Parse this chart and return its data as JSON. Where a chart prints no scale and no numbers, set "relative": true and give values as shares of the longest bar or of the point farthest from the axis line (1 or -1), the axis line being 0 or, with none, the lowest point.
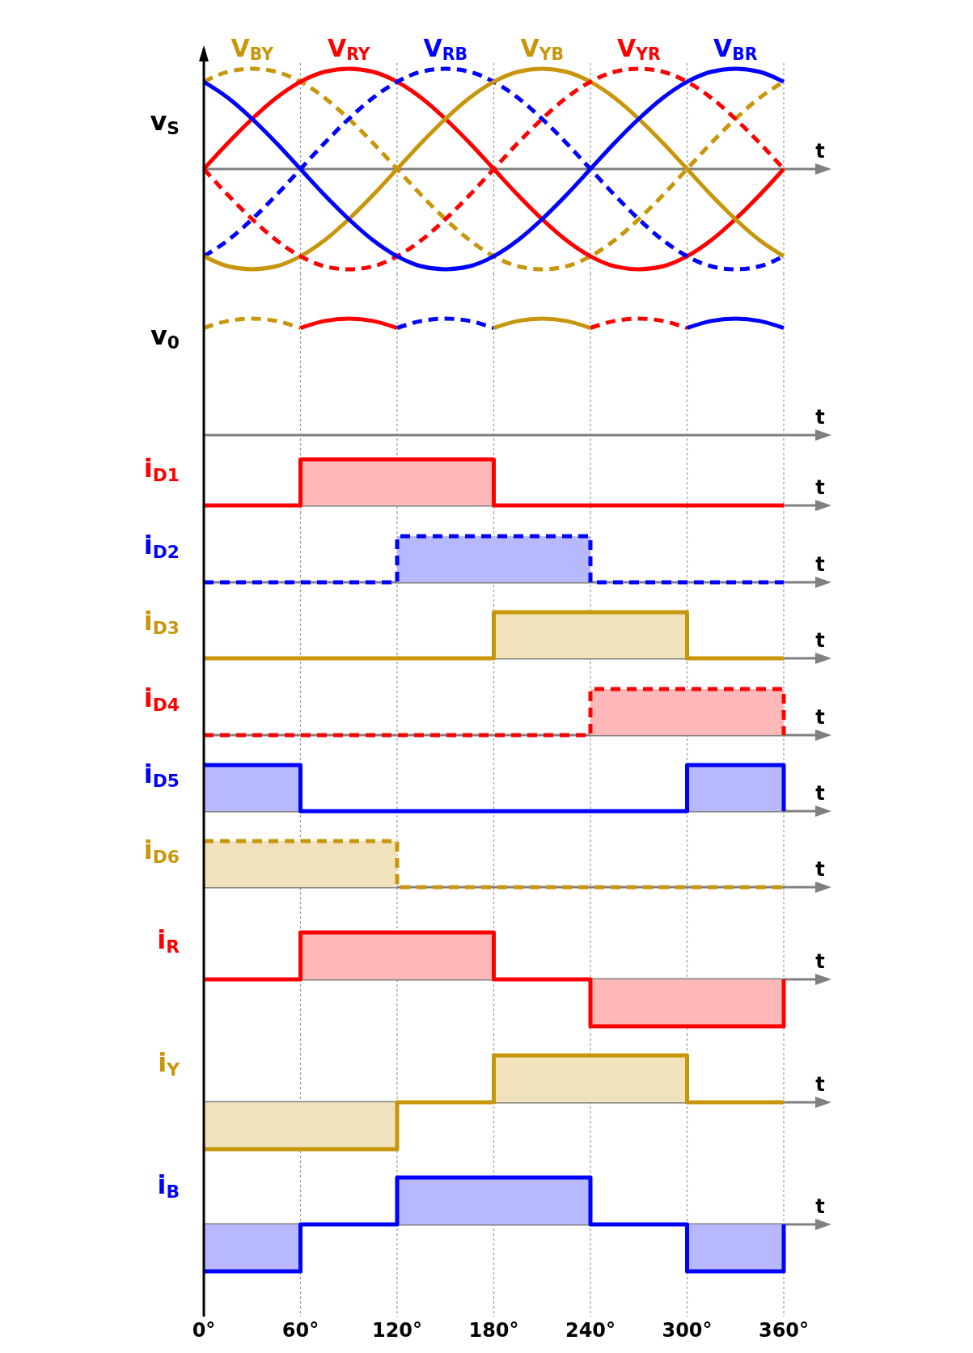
{
  "chart_data": [
    {
      "type": "line",
      "relative": true,
      "ylabel": "v$_{S}$",
      "xlabel": "t",
      "xlim": [
        0,
        360
      ],
      "xticks": [
        0,
        60,
        120,
        180,
        240,
        300,
        360
      ],
      "grid": "x",
      "tick_labels": false,
      "x": [
        0,
        15,
        30,
        45,
        60,
        75,
        90,
        105,
        120,
        135,
        150,
        165,
        180,
        195,
        210,
        225,
        240,
        255,
        270,
        285,
        300,
        315,
        330,
        345,
        360
      ],
      "series": [
        {
          "name": "V$_{BY}$",
          "color": "#c8960a",
          "line_style": "dashed",
          "values": [
            0.87,
            0.97,
            1,
            0.97,
            0.87,
            0.71,
            0.5,
            0.26,
            0,
            -0.26,
            -0.5,
            -0.71,
            -0.87,
            -0.97,
            -1,
            -0.97,
            -0.87,
            -0.71,
            -0.5,
            -0.26,
            0,
            0.26,
            0.5,
            0.71,
            0.87
          ]
        },
        {
          "name": "V$_{RY}$",
          "color": "#ff0000",
          "line_style": "solid",
          "values": [
            0,
            0.26,
            0.5,
            0.71,
            0.87,
            0.97,
            1,
            0.97,
            0.87,
            0.71,
            0.5,
            0.26,
            0,
            -0.26,
            -0.5,
            -0.71,
            -0.87,
            -0.97,
            -1,
            -0.97,
            -0.87,
            -0.71,
            -0.5,
            -0.26,
            0
          ]
        },
        {
          "name": "V$_{RB}$",
          "color": "#0000ff",
          "line_style": "dashed",
          "values": [
            -0.87,
            -0.71,
            -0.5,
            -0.26,
            0,
            0.26,
            0.5,
            0.71,
            0.87,
            0.97,
            1,
            0.97,
            0.87,
            0.71,
            0.5,
            0.26,
            0,
            -0.26,
            -0.5,
            -0.71,
            -0.87,
            -0.97,
            -1,
            -0.97,
            -0.87
          ]
        },
        {
          "name": "V$_{YB}$",
          "color": "#c8960a",
          "line_style": "solid",
          "values": [
            -0.87,
            -0.97,
            -1,
            -0.97,
            -0.87,
            -0.71,
            -0.5,
            -0.26,
            0,
            0.26,
            0.5,
            0.71,
            0.87,
            0.97,
            1,
            0.97,
            0.87,
            0.71,
            0.5,
            0.26,
            0,
            -0.26,
            -0.5,
            -0.71,
            -0.87
          ]
        },
        {
          "name": "V$_{YR}$",
          "color": "#ff0000",
          "line_style": "dashed",
          "values": [
            0,
            -0.26,
            -0.5,
            -0.71,
            -0.87,
            -0.97,
            -1,
            -0.97,
            -0.87,
            -0.71,
            -0.5,
            -0.26,
            0,
            0.26,
            0.5,
            0.71,
            0.87,
            0.97,
            1,
            0.97,
            0.87,
            0.71,
            0.5,
            0.26,
            0
          ]
        },
        {
          "name": "V$_{BR}$",
          "color": "#0000ff",
          "line_style": "solid",
          "values": [
            0.87,
            0.71,
            0.5,
            0.26,
            0,
            -0.26,
            -0.5,
            -0.71,
            -0.87,
            -0.97,
            -1,
            -0.97,
            -0.87,
            -0.71,
            -0.5,
            -0.26,
            0,
            0.26,
            0.5,
            0.71,
            0.87,
            0.97,
            1,
            0.97,
            0.87
          ]
        }
      ]
    },
    {
      "type": "line",
      "relative": true,
      "ylabel": "v$_{0}$",
      "xlabel": "t",
      "xlim": [
        0,
        360
      ],
      "xticks": [
        0,
        60,
        120,
        180,
        240,
        300,
        360
      ],
      "grid": "x",
      "tick_labels": false,
      "series": [
        {
          "color": "#c8960a",
          "line_style": "dashed",
          "x": [
            0,
            15,
            30,
            45,
            60
          ],
          "values": [
            0.92,
            0.98,
            1,
            0.98,
            0.92
          ]
        },
        {
          "color": "#ff0000",
          "line_style": "solid",
          "x": [
            60,
            75,
            90,
            105,
            120
          ],
          "values": [
            0.92,
            0.98,
            1,
            0.98,
            0.92
          ]
        },
        {
          "color": "#0000ff",
          "line_style": "dashed",
          "x": [
            120,
            135,
            150,
            165,
            180
          ],
          "values": [
            0.92,
            0.98,
            1,
            0.98,
            0.92
          ]
        },
        {
          "color": "#c8960a",
          "line_style": "solid",
          "x": [
            180,
            195,
            210,
            225,
            240
          ],
          "values": [
            0.92,
            0.98,
            1,
            0.98,
            0.92
          ]
        },
        {
          "color": "#ff0000",
          "line_style": "dashed",
          "x": [
            240,
            255,
            270,
            285,
            300
          ],
          "values": [
            0.92,
            0.98,
            1,
            0.98,
            0.92
          ]
        },
        {
          "color": "#0000ff",
          "line_style": "solid",
          "x": [
            300,
            315,
            330,
            345,
            360
          ],
          "values": [
            0.92,
            0.98,
            1,
            0.98,
            0.92
          ]
        }
      ]
    },
    {
      "type": "step",
      "relative": true,
      "ylabel": "i$_{D1}$",
      "xlabel": "t",
      "xlim": [
        0,
        360
      ],
      "xticks": [
        0,
        60,
        120,
        180,
        240,
        300,
        360
      ],
      "grid": "x",
      "tick_labels": false,
      "line_style": "solid",
      "x": [
        0,
        60,
        120,
        180,
        240,
        300,
        360
      ],
      "series": [
        {
          "color": "#ff0000",
          "values": [
            0,
            1,
            1,
            0,
            0,
            0,
            0
          ]
        }
      ]
    },
    {
      "type": "step",
      "relative": true,
      "ylabel": "i$_{D2}$",
      "xlabel": "t",
      "xlim": [
        0,
        360
      ],
      "xticks": [
        0,
        60,
        120,
        180,
        240,
        300,
        360
      ],
      "grid": "x",
      "tick_labels": false,
      "line_style": "dashed",
      "x": [
        0,
        60,
        120,
        180,
        240,
        300,
        360
      ],
      "series": [
        {
          "color": "#0000ff",
          "values": [
            0,
            0,
            1,
            1,
            0,
            0,
            0
          ]
        }
      ]
    },
    {
      "type": "step",
      "relative": true,
      "ylabel": "i$_{D3}$",
      "xlabel": "t",
      "xlim": [
        0,
        360
      ],
      "xticks": [
        0,
        60,
        120,
        180,
        240,
        300,
        360
      ],
      "grid": "x",
      "tick_labels": false,
      "line_style": "solid",
      "x": [
        0,
        60,
        120,
        180,
        240,
        300,
        360
      ],
      "series": [
        {
          "color": "#c8960a",
          "values": [
            0,
            0,
            0,
            1,
            1,
            0,
            0
          ]
        }
      ]
    },
    {
      "type": "step",
      "relative": true,
      "ylabel": "i$_{D4}$",
      "xlabel": "t",
      "xlim": [
        0,
        360
      ],
      "xticks": [
        0,
        60,
        120,
        180,
        240,
        300,
        360
      ],
      "grid": "x",
      "tick_labels": false,
      "line_style": "dashed",
      "series": [
        {
          "color": "#ff0000",
          "x": [
            0,
            60,
            120,
            180,
            240,
            300,
            360,
            360
          ],
          "values": [
            0,
            0,
            0,
            0,
            1,
            1,
            1,
            0
          ]
        }
      ]
    },
    {
      "type": "step",
      "relative": true,
      "ylabel": "i$_{D5}$",
      "xlabel": "t",
      "xlim": [
        0,
        360
      ],
      "xticks": [
        0,
        60,
        120,
        180,
        240,
        300,
        360
      ],
      "grid": "x",
      "tick_labels": false,
      "line_style": "solid",
      "series": [
        {
          "color": "#0000ff",
          "x": [
            0,
            60,
            120,
            180,
            240,
            300,
            360,
            360
          ],
          "values": [
            1,
            0,
            0,
            0,
            0,
            1,
            1,
            0
          ]
        }
      ]
    },
    {
      "type": "step",
      "relative": true,
      "ylabel": "i$_{D6}$",
      "xlabel": "t",
      "xlim": [
        0,
        360
      ],
      "xticks": [
        0,
        60,
        120,
        180,
        240,
        300,
        360
      ],
      "grid": "x",
      "tick_labels": false,
      "line_style": "dashed",
      "x": [
        0,
        60,
        120,
        180,
        240,
        300,
        360
      ],
      "series": [
        {
          "color": "#c8960a",
          "values": [
            1,
            1,
            0,
            0,
            0,
            0,
            0
          ]
        }
      ]
    },
    {
      "type": "step",
      "relative": true,
      "ylabel": "i$_{R}$",
      "xlabel": "t",
      "xlim": [
        0,
        360
      ],
      "xticks": [
        0,
        60,
        120,
        180,
        240,
        300,
        360
      ],
      "grid": "x",
      "tick_labels": false,
      "line_style": "solid",
      "series": [
        {
          "color": "#ff0000",
          "x": [
            0,
            60,
            120,
            180,
            240,
            300,
            360,
            360
          ],
          "values": [
            0,
            1,
            1,
            0,
            -1,
            -1,
            -1,
            0
          ]
        }
      ]
    },
    {
      "type": "step",
      "relative": true,
      "ylabel": "i$_{Y}$",
      "xlabel": "t",
      "xlim": [
        0,
        360
      ],
      "xticks": [
        0,
        60,
        120,
        180,
        240,
        300,
        360
      ],
      "grid": "x",
      "tick_labels": false,
      "line_style": "solid",
      "x": [
        0,
        60,
        120,
        180,
        240,
        300,
        360
      ],
      "series": [
        {
          "color": "#c8960a",
          "values": [
            -1,
            -1,
            0,
            1,
            1,
            0,
            0
          ]
        }
      ]
    },
    {
      "type": "step",
      "relative": true,
      "ylabel": "i$_{B}$",
      "xlabel": "t",
      "xlim": [
        0,
        360
      ],
      "grid": "x",
      "tick_labels": "x",
      "line_style": "solid",
      "xticks": [
        {
          "value": 0,
          "label": "0°"
        },
        {
          "value": 60,
          "label": "60°"
        },
        {
          "value": 120,
          "label": "120°"
        },
        {
          "value": 180,
          "label": "180°"
        },
        {
          "value": 240,
          "label": "240°"
        },
        {
          "value": 300,
          "label": "300°"
        },
        {
          "value": 360,
          "label": "360°"
        }
      ],
      "series": [
        {
          "color": "#0000ff",
          "x": [
            0,
            60,
            120,
            180,
            240,
            300,
            360,
            360
          ],
          "values": [
            -1,
            0,
            1,
            1,
            0,
            -1,
            -1,
            0
          ]
        }
      ]
    }
  ]
}
